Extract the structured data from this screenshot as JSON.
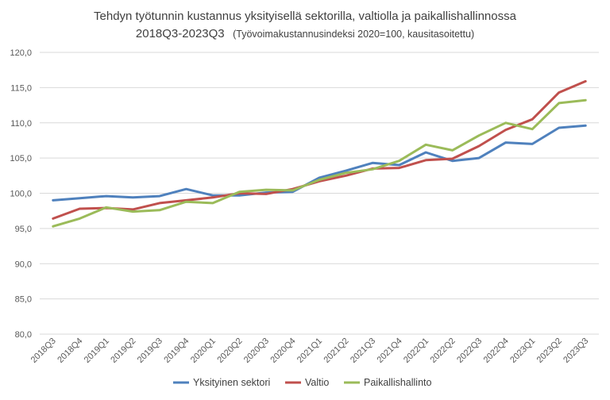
{
  "chart_data": {
    "type": "line",
    "title": "Tehdyn työtunnin kustannus yksityisellä sektorilla, valtiolla ja paikallishallinnossa",
    "subtitle_main": "2018Q3-2023Q3",
    "subtitle_note": "(Työvoimakustannusindeksi 2020=100, kausitasoitettu)",
    "xlabel": "",
    "ylabel": "",
    "ylim": [
      80,
      120
    ],
    "ytick_step": 5,
    "yticks": [
      "80,0",
      "85,0",
      "90,0",
      "95,0",
      "100,0",
      "105,0",
      "110,0",
      "115,0",
      "120,0"
    ],
    "grid": true,
    "legend_position": "bottom",
    "categories": [
      "2018Q3",
      "2018Q4",
      "2019Q1",
      "2019Q2",
      "2019Q3",
      "2019Q4",
      "2020Q1",
      "2020Q2",
      "2020Q3",
      "2020Q4",
      "2021Q1",
      "2021Q2",
      "2021Q3",
      "2021Q4",
      "2022Q1",
      "2022Q2",
      "2022Q3",
      "2022Q4",
      "2023Q1",
      "2023Q2",
      "2023Q3"
    ],
    "series": [
      {
        "name": "Yksityinen sektori",
        "color": "#4f81bd",
        "values": [
          99.0,
          99.3,
          99.6,
          99.4,
          99.6,
          100.6,
          99.7,
          99.7,
          100.1,
          100.2,
          102.2,
          103.2,
          104.3,
          104.0,
          105.8,
          104.6,
          105.0,
          107.2,
          107.0,
          109.3,
          109.6
        ]
      },
      {
        "name": "Valtio",
        "color": "#c0504d",
        "values": [
          96.4,
          97.8,
          97.9,
          97.7,
          98.6,
          99.0,
          99.4,
          100.0,
          99.9,
          100.6,
          101.7,
          102.5,
          103.5,
          103.6,
          104.7,
          104.9,
          106.7,
          109.0,
          110.5,
          114.3,
          115.9
        ]
      },
      {
        "name": "Paikallishallinto",
        "color": "#9bbb59",
        "values": [
          95.3,
          96.4,
          98.0,
          97.4,
          97.6,
          98.8,
          98.6,
          100.2,
          100.5,
          100.4,
          101.9,
          102.9,
          103.4,
          104.6,
          106.9,
          106.1,
          108.2,
          110.0,
          109.1,
          112.8,
          113.2
        ]
      }
    ]
  }
}
